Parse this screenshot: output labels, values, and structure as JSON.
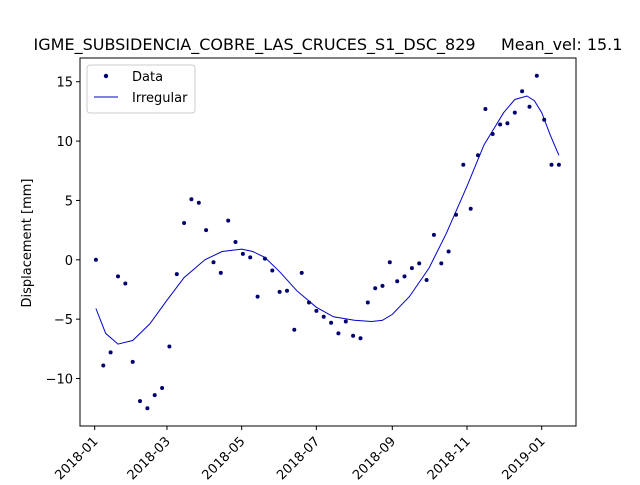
{
  "chart_data": {
    "type": "scatter",
    "title": "IGME_SUBSIDENCIA_COBRE_LAS_CRUCES_S1_DSC_829     Mean_vel: 15.1",
    "xlabel": "",
    "ylabel": "Displacement [mm]",
    "xlim": [
      "2017-12-20",
      "2019-01-29"
    ],
    "ylim": [
      -14,
      17
    ],
    "x_ticks": [
      "2018-01",
      "2018-03",
      "2018-05",
      "2018-07",
      "2018-09",
      "2018-11",
      "2019-01"
    ],
    "y_ticks": [
      -10,
      -5,
      0,
      5,
      10,
      15
    ],
    "grid": false,
    "legend": {
      "position": "top-left",
      "entries": [
        "Data",
        "Irregular"
      ]
    },
    "colors": {
      "data": "#00006e",
      "fit": "#0000cc"
    },
    "series": [
      {
        "name": "Data",
        "kind": "points",
        "x": [
          "2018-01-02",
          "2018-01-08",
          "2018-01-14",
          "2018-01-20",
          "2018-01-26",
          "2018-02-01",
          "2018-02-07",
          "2018-02-13",
          "2018-02-19",
          "2018-02-25",
          "2018-03-03",
          "2018-03-09",
          "2018-03-15",
          "2018-03-21",
          "2018-03-27",
          "2018-04-02",
          "2018-04-08",
          "2018-04-14",
          "2018-04-20",
          "2018-04-26",
          "2018-05-02",
          "2018-05-08",
          "2018-05-14",
          "2018-05-20",
          "2018-05-26",
          "2018-06-01",
          "2018-06-07",
          "2018-06-13",
          "2018-06-19",
          "2018-06-25",
          "2018-07-01",
          "2018-07-07",
          "2018-07-13",
          "2018-07-19",
          "2018-07-25",
          "2018-07-31",
          "2018-08-06",
          "2018-08-12",
          "2018-08-18",
          "2018-08-24",
          "2018-08-30",
          "2018-09-05",
          "2018-09-11",
          "2018-09-17",
          "2018-09-23",
          "2018-09-29",
          "2018-10-05",
          "2018-10-11",
          "2018-10-17",
          "2018-10-23",
          "2018-10-29",
          "2018-11-04",
          "2018-11-10",
          "2018-11-16",
          "2018-11-22",
          "2018-11-28",
          "2018-12-04",
          "2018-12-10",
          "2018-12-16",
          "2018-12-22",
          "2018-12-28",
          "2019-01-03",
          "2019-01-09",
          "2019-01-15"
        ],
        "y": [
          0.0,
          -8.9,
          -7.8,
          -1.4,
          -2.0,
          -8.6,
          -11.9,
          -12.5,
          -11.4,
          -10.8,
          -7.3,
          -1.2,
          3.1,
          5.1,
          4.8,
          2.5,
          -0.2,
          -1.1,
          3.3,
          1.5,
          0.5,
          0.2,
          -3.1,
          0.1,
          -0.9,
          -2.7,
          -2.6,
          -5.9,
          -1.1,
          -3.6,
          -4.3,
          -4.8,
          -5.3,
          -6.2,
          -5.2,
          -6.4,
          -6.6,
          -3.6,
          -2.4,
          -2.2,
          -0.2,
          -1.8,
          -1.4,
          -0.7,
          -0.3,
          -1.7,
          2.1,
          -0.3,
          0.7,
          3.8,
          8.0,
          4.3,
          8.8,
          12.7,
          10.6,
          11.4,
          11.5,
          12.4,
          14.2,
          12.9,
          15.5,
          11.8,
          8.0,
          8.0
        ]
      },
      {
        "name": "Irregular",
        "kind": "line",
        "x": [
          "2018-01-02",
          "2018-01-10",
          "2018-01-20",
          "2018-02-01",
          "2018-02-15",
          "2018-03-01",
          "2018-03-15",
          "2018-04-01",
          "2018-04-15",
          "2018-05-01",
          "2018-05-10",
          "2018-05-20",
          "2018-06-01",
          "2018-06-15",
          "2018-07-01",
          "2018-07-15",
          "2018-08-01",
          "2018-08-15",
          "2018-08-24",
          "2018-09-01",
          "2018-09-15",
          "2018-10-01",
          "2018-10-15",
          "2018-11-01",
          "2018-11-15",
          "2018-12-01",
          "2018-12-10",
          "2018-12-20",
          "2018-12-26",
          "2019-01-01",
          "2019-01-08",
          "2019-01-15"
        ],
        "y": [
          -4.1,
          -6.2,
          -7.1,
          -6.8,
          -5.4,
          -3.4,
          -1.5,
          0.0,
          0.7,
          0.9,
          0.7,
          0.2,
          -1.0,
          -2.6,
          -4.0,
          -4.8,
          -5.1,
          -5.2,
          -5.1,
          -4.6,
          -3.1,
          -0.7,
          2.2,
          6.2,
          9.7,
          12.4,
          13.5,
          13.8,
          13.4,
          12.4,
          10.5,
          8.8
        ]
      }
    ]
  }
}
